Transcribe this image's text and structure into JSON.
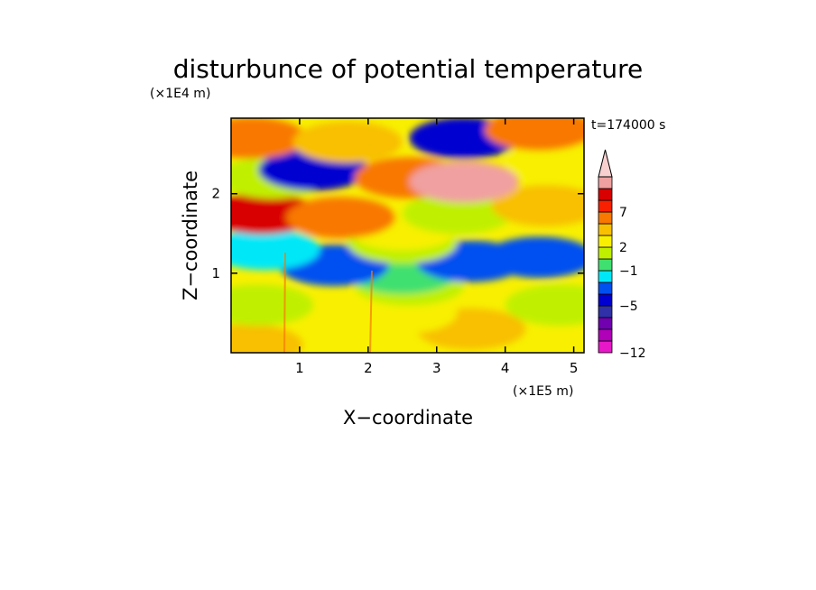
{
  "chart_data": {
    "type": "heatmap",
    "title": "disturbunce of potential temperature",
    "time_label": "t=174000 s",
    "xlabel": "X−coordinate",
    "ylabel": "Z−coordinate",
    "x_unit": "(×1E5 m)",
    "y_unit": "(×1E4 m)",
    "xlim": [
      0,
      5.15
    ],
    "ylim": [
      0,
      2.95
    ],
    "x_ticks": [
      "1",
      "2",
      "3",
      "4",
      "5"
    ],
    "y_ticks": [
      "1",
      "2"
    ],
    "colorbar": {
      "levels": [
        -12,
        -10,
        -8,
        -6,
        -5,
        -3,
        -1,
        0,
        1,
        2,
        4,
        6,
        7,
        9,
        11
      ],
      "tick_labels": [
        "7",
        "2",
        "−1",
        "−5",
        "−12"
      ],
      "colors": [
        "#e818c8",
        "#b000b8",
        "#7000b0",
        "#3030a8",
        "#0000d0",
        "#0050f0",
        "#00e8f8",
        "#40e070",
        "#c0f000",
        "#f8f000",
        "#f8c000",
        "#f87800",
        "#f82000",
        "#d80000",
        "#f0a0a0",
        "#f8d0d0"
      ],
      "extend": "max"
    },
    "field_cells": [
      {
        "x": 0.25,
        "z": 0.1,
        "v": 2
      },
      {
        "x": 3.5,
        "z": 0.3,
        "v": 2
      },
      {
        "x": 2.5,
        "z": 0.5,
        "v": 1
      },
      {
        "x": 0.4,
        "z": 0.6,
        "v": 0
      },
      {
        "x": 4.8,
        "z": 0.6,
        "v": 0
      },
      {
        "x": 2.6,
        "z": 0.85,
        "v": 0.5
      },
      {
        "x": 2.5,
        "z": 1.0,
        "v": -1
      },
      {
        "x": 2.5,
        "z": 1.2,
        "v": -1
      },
      {
        "x": 1.5,
        "z": 1.1,
        "v": -5
      },
      {
        "x": 3.5,
        "z": 1.15,
        "v": -5
      },
      {
        "x": 4.5,
        "z": 1.2,
        "v": -5
      },
      {
        "x": 0.5,
        "z": 1.3,
        "v": -3
      },
      {
        "x": 2.5,
        "z": 1.38,
        "v": 0
      },
      {
        "x": 2.5,
        "z": 1.55,
        "v": 1
      },
      {
        "x": 0.45,
        "z": 1.75,
        "v": 7
      },
      {
        "x": 1.6,
        "z": 1.7,
        "v": 4
      },
      {
        "x": 3.3,
        "z": 1.75,
        "v": 0
      },
      {
        "x": 4.6,
        "z": 1.85,
        "v": 2
      },
      {
        "x": 0.6,
        "z": 2.2,
        "v": 0
      },
      {
        "x": 1.2,
        "z": 2.3,
        "v": -6
      },
      {
        "x": 2.6,
        "z": 2.2,
        "v": 4
      },
      {
        "x": 3.4,
        "z": 2.15,
        "v": 9
      },
      {
        "x": 4.8,
        "z": 2.4,
        "v": 1
      },
      {
        "x": 0.3,
        "z": 2.7,
        "v": 4
      },
      {
        "x": 1.7,
        "z": 2.65,
        "v": 2
      },
      {
        "x": 3.4,
        "z": 2.7,
        "v": -6
      },
      {
        "x": 4.5,
        "z": 2.8,
        "v": 4
      }
    ]
  }
}
